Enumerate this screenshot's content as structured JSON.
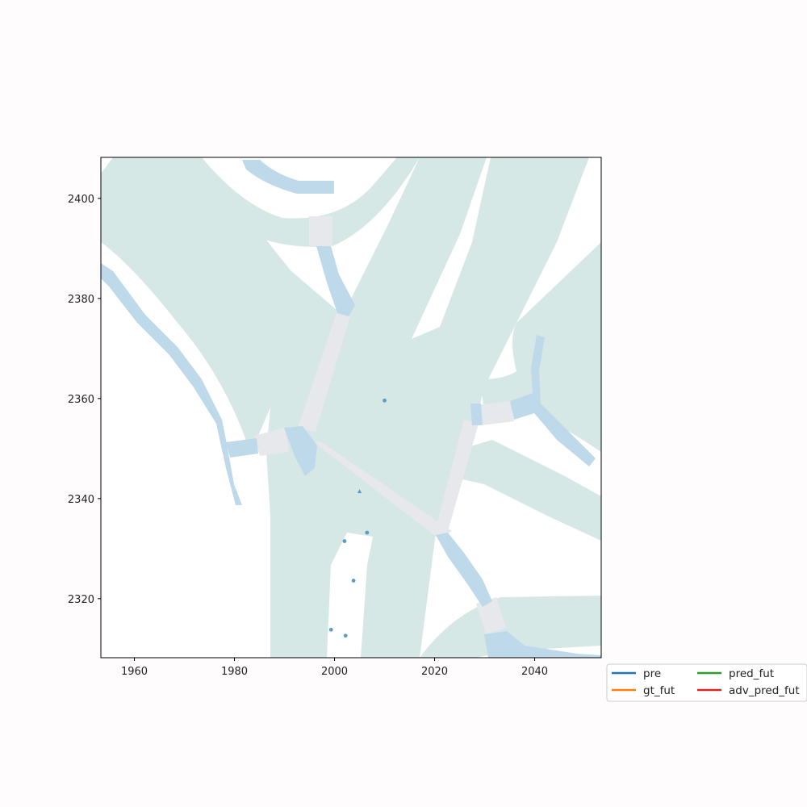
{
  "chart_data": {
    "type": "map",
    "title": "",
    "xlabel": "",
    "ylabel": "",
    "xlim": [
      1953.3,
      2053.3
    ],
    "ylim": [
      2308.2,
      2408.2
    ],
    "x_ticks": [
      1960,
      1980,
      2000,
      2020,
      2040
    ],
    "y_ticks": [
      2320,
      2340,
      2360,
      2380,
      2400
    ],
    "x_tick_labels": [
      "1960",
      "1980",
      "2000",
      "2020",
      "2040"
    ],
    "y_tick_labels": [
      "2320",
      "2340",
      "2360",
      "2380",
      "2400"
    ],
    "colors": {
      "drivable_area": "#d6e8e5",
      "crosswalk": "#e6e8ec",
      "walkway": "#bed9ea",
      "agent": "#5b9bc4",
      "pre": "#1f77b4",
      "gt_fut": "#ff7f0e",
      "pred_fut": "#2ca02c",
      "adv_pred_fut": "#d62728"
    },
    "agents": [
      {
        "x": 2010.0,
        "y": 2359.6,
        "marker": "circle"
      },
      {
        "x": 2005.0,
        "y": 2341.4,
        "marker": "triangle"
      },
      {
        "x": 2006.5,
        "y": 2333.2,
        "marker": "circle"
      },
      {
        "x": 2002.0,
        "y": 2331.5,
        "marker": "circle"
      },
      {
        "x": 2003.8,
        "y": 2323.6,
        "marker": "circle"
      },
      {
        "x": 1999.3,
        "y": 2313.8,
        "marker": "circle"
      },
      {
        "x": 2002.2,
        "y": 2312.6,
        "marker": "circle"
      }
    ],
    "series": [
      {
        "name": "pre",
        "points": []
      },
      {
        "name": "gt_fut",
        "points": []
      },
      {
        "name": "pred_fut",
        "points": []
      },
      {
        "name": "adv_pred_fut",
        "points": []
      }
    ],
    "legend": {
      "placement": "bottom-right, outside axes",
      "columns": 2,
      "entries": [
        {
          "label": "pre",
          "color": "#1f77b4"
        },
        {
          "label": "gt_fut",
          "color": "#ff7f0e"
        },
        {
          "label": "pred_fut",
          "color": "#2ca02c"
        },
        {
          "label": "adv_pred_fut",
          "color": "#d62728"
        }
      ]
    },
    "grid": false
  }
}
